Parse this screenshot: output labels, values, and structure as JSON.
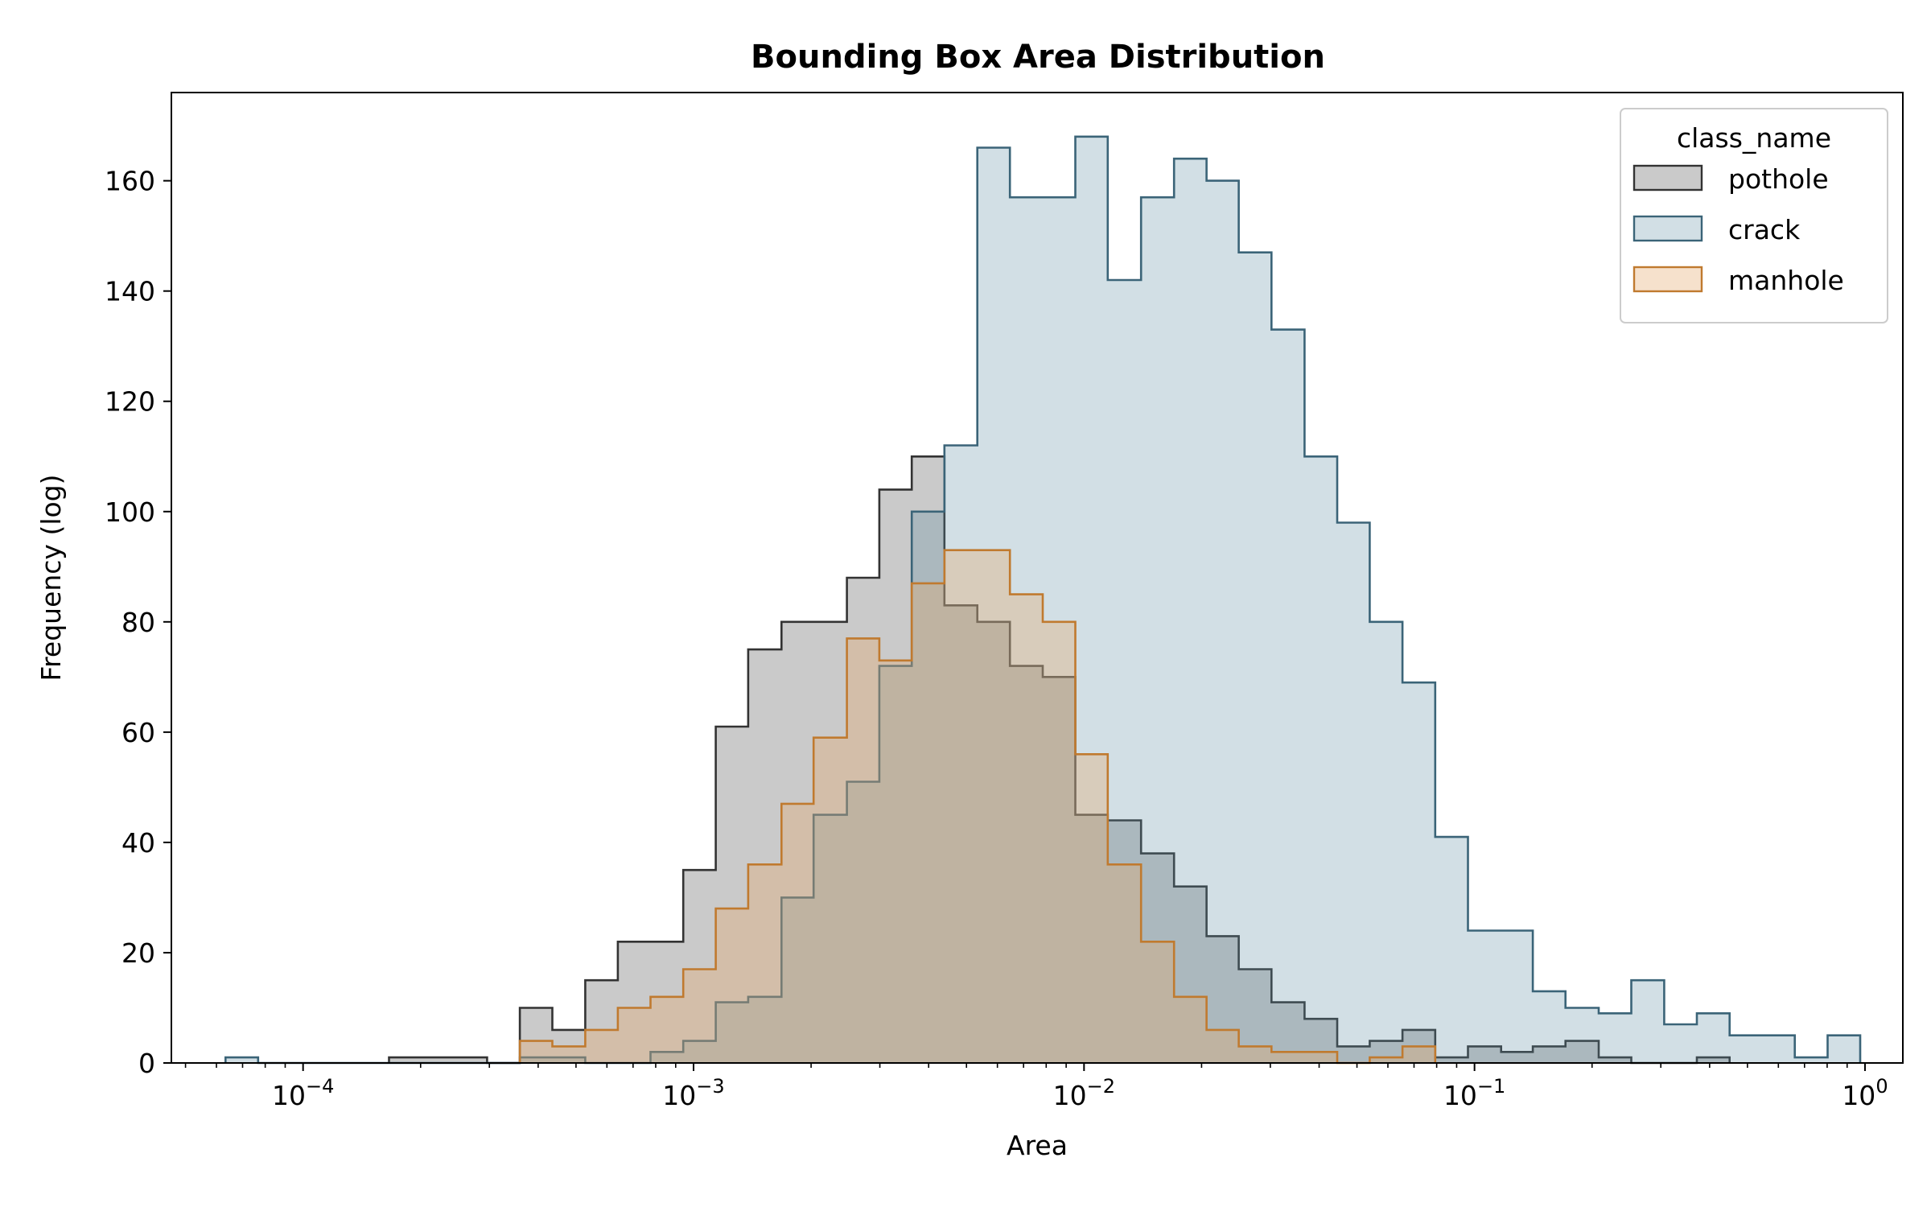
{
  "chart_data": {
    "type": "histogram",
    "title": "Bounding Box Area Distribution",
    "xlabel": "Area",
    "ylabel": "Frequency (log)",
    "x_scale": "log",
    "xlim": [
      4.6e-05,
      1.25
    ],
    "ylim": [
      0,
      176
    ],
    "y_ticks": [
      0,
      20,
      40,
      60,
      80,
      100,
      120,
      140,
      160
    ],
    "x_ticks": [
      {
        "value": 0.0001,
        "base": "10",
        "exp": "−4"
      },
      {
        "value": 0.001,
        "base": "10",
        "exp": "−3"
      },
      {
        "value": 0.01,
        "base": "10",
        "exp": "−2"
      },
      {
        "value": 0.1,
        "base": "10",
        "exp": "−1"
      },
      {
        "value": 1,
        "base": "10",
        "exp": "0"
      }
    ],
    "grid": false,
    "legend": {
      "title": "class_name",
      "placement": "top-right"
    },
    "bin_edges": [
      6.33e-05,
      7.67e-05,
      9.3e-05,
      0.000113,
      0.000137,
      0.000166,
      0.000201,
      0.000244,
      0.000296,
      0.000359,
      0.000435,
      0.000528,
      0.00064,
      0.000776,
      0.000941,
      0.00114,
      0.00138,
      0.00168,
      0.00203,
      0.00247,
      0.00299,
      0.00362,
      0.00439,
      0.00533,
      0.00646,
      0.00784,
      0.0095,
      0.0115,
      0.014,
      0.017,
      0.0206,
      0.0249,
      0.0302,
      0.0367,
      0.0445,
      0.0539,
      0.0654,
      0.0793,
      0.0962,
      0.117,
      0.141,
      0.171,
      0.208,
      0.252,
      0.306,
      0.371,
      0.45,
      0.545,
      0.661,
      0.802,
      0.972
    ],
    "series": [
      {
        "name": "pothole",
        "color": "#333333",
        "fill": "rgba(80,80,80,0.30)",
        "values": [
          0,
          0,
          0,
          0,
          0,
          1,
          1,
          1,
          0,
          10,
          6,
          15,
          22,
          22,
          35,
          61,
          75,
          80,
          80,
          88,
          104,
          110,
          83,
          80,
          72,
          70,
          45,
          44,
          38,
          32,
          23,
          17,
          11,
          8,
          3,
          4,
          6,
          1,
          3,
          2,
          3,
          4,
          1,
          0,
          0,
          1,
          0,
          0,
          0,
          0
        ]
      },
      {
        "name": "crack",
        "color": "#3b6478",
        "fill": "rgba(95,140,160,0.28)",
        "values": [
          1,
          0,
          0,
          0,
          0,
          0,
          0,
          0,
          0,
          1,
          1,
          0,
          0,
          2,
          4,
          11,
          12,
          30,
          45,
          51,
          72,
          100,
          112,
          166,
          157,
          157,
          168,
          142,
          157,
          164,
          160,
          147,
          133,
          110,
          98,
          80,
          69,
          41,
          24,
          24,
          13,
          10,
          9,
          15,
          7,
          9,
          5,
          5,
          1,
          5
        ]
      },
      {
        "name": "manhole",
        "color": "#c07a2f",
        "fill": "rgba(230,170,110,0.35)",
        "values": [
          0,
          0,
          0,
          0,
          0,
          0,
          0,
          0,
          0,
          4,
          3,
          6,
          10,
          12,
          17,
          28,
          36,
          47,
          59,
          77,
          73,
          87,
          93,
          93,
          85,
          80,
          56,
          36,
          22,
          12,
          6,
          3,
          2,
          2,
          0,
          1,
          3,
          0,
          0,
          0,
          0,
          0,
          0,
          0,
          0,
          0,
          0,
          0,
          0,
          0
        ]
      }
    ]
  }
}
